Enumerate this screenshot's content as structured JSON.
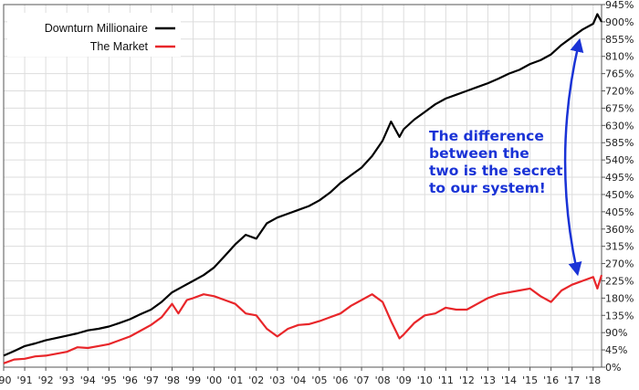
{
  "chart_data": {
    "type": "line",
    "title": "",
    "xlabel": "",
    "ylabel": "",
    "y_unit": "percent",
    "ylim": [
      0,
      945
    ],
    "xlim": [
      1990,
      2018.4
    ],
    "grid": true,
    "legend_position": "top-left",
    "x_ticks": [
      "'90",
      "'91",
      "'92",
      "'93",
      "'94",
      "'95",
      "'96",
      "'97",
      "'98",
      "'99",
      "'00",
      "'01",
      "'02",
      "'03",
      "'04",
      "'05",
      "'06",
      "'07",
      "'08",
      "'09",
      "'10",
      "'11",
      "'12",
      "'13",
      "'14",
      "'15",
      "'16",
      "'17",
      "'18"
    ],
    "y_ticks": [
      "0%",
      "45%",
      "90%",
      "135%",
      "180%",
      "225%",
      "270%",
      "315%",
      "360%",
      "405%",
      "450%",
      "495%",
      "540%",
      "585%",
      "630%",
      "675%",
      "720%",
      "765%",
      "810%",
      "855%",
      "900%",
      "945%"
    ],
    "series": [
      {
        "name": "Downturn Millionaire",
        "color": "#000000",
        "points": [
          [
            1990.0,
            30
          ],
          [
            1990.5,
            42
          ],
          [
            1991.0,
            55
          ],
          [
            1991.5,
            62
          ],
          [
            1992.0,
            70
          ],
          [
            1992.5,
            76
          ],
          [
            1993.0,
            82
          ],
          [
            1993.5,
            88
          ],
          [
            1994.0,
            96
          ],
          [
            1994.5,
            100
          ],
          [
            1995.0,
            106
          ],
          [
            1995.5,
            115
          ],
          [
            1996.0,
            125
          ],
          [
            1996.5,
            138
          ],
          [
            1997.0,
            150
          ],
          [
            1997.5,
            170
          ],
          [
            1998.0,
            195
          ],
          [
            1998.5,
            210
          ],
          [
            1999.0,
            225
          ],
          [
            1999.5,
            240
          ],
          [
            2000.0,
            260
          ],
          [
            2000.5,
            290
          ],
          [
            2001.0,
            320
          ],
          [
            2001.5,
            345
          ],
          [
            2002.0,
            335
          ],
          [
            2002.5,
            375
          ],
          [
            2003.0,
            390
          ],
          [
            2003.5,
            400
          ],
          [
            2004.0,
            410
          ],
          [
            2004.5,
            420
          ],
          [
            2005.0,
            435
          ],
          [
            2005.5,
            455
          ],
          [
            2006.0,
            480
          ],
          [
            2006.5,
            500
          ],
          [
            2007.0,
            520
          ],
          [
            2007.5,
            550
          ],
          [
            2008.0,
            590
          ],
          [
            2008.4,
            640
          ],
          [
            2008.8,
            600
          ],
          [
            2009.0,
            620
          ],
          [
            2009.5,
            645
          ],
          [
            2010.0,
            665
          ],
          [
            2010.5,
            685
          ],
          [
            2011.0,
            700
          ],
          [
            2011.5,
            710
          ],
          [
            2012.0,
            720
          ],
          [
            2012.5,
            730
          ],
          [
            2013.0,
            740
          ],
          [
            2013.5,
            752
          ],
          [
            2014.0,
            765
          ],
          [
            2014.5,
            775
          ],
          [
            2015.0,
            790
          ],
          [
            2015.5,
            800
          ],
          [
            2016.0,
            815
          ],
          [
            2016.5,
            840
          ],
          [
            2017.0,
            860
          ],
          [
            2017.5,
            880
          ],
          [
            2018.0,
            895
          ],
          [
            2018.2,
            920
          ],
          [
            2018.4,
            900
          ]
        ]
      },
      {
        "name": "The Market",
        "color": "#e8262a",
        "points": [
          [
            1990.0,
            10
          ],
          [
            1990.5,
            20
          ],
          [
            1991.0,
            22
          ],
          [
            1991.5,
            28
          ],
          [
            1992.0,
            30
          ],
          [
            1992.5,
            35
          ],
          [
            1993.0,
            40
          ],
          [
            1993.5,
            52
          ],
          [
            1994.0,
            50
          ],
          [
            1994.5,
            55
          ],
          [
            1995.0,
            60
          ],
          [
            1995.5,
            70
          ],
          [
            1996.0,
            80
          ],
          [
            1996.5,
            95
          ],
          [
            1997.0,
            110
          ],
          [
            1997.5,
            130
          ],
          [
            1998.0,
            165
          ],
          [
            1998.3,
            140
          ],
          [
            1998.7,
            175
          ],
          [
            1999.0,
            180
          ],
          [
            1999.5,
            190
          ],
          [
            2000.0,
            185
          ],
          [
            2000.5,
            175
          ],
          [
            2001.0,
            165
          ],
          [
            2001.5,
            140
          ],
          [
            2002.0,
            135
          ],
          [
            2002.5,
            100
          ],
          [
            2003.0,
            80
          ],
          [
            2003.5,
            100
          ],
          [
            2004.0,
            110
          ],
          [
            2004.5,
            112
          ],
          [
            2005.0,
            120
          ],
          [
            2005.5,
            130
          ],
          [
            2006.0,
            140
          ],
          [
            2006.5,
            160
          ],
          [
            2007.0,
            175
          ],
          [
            2007.5,
            190
          ],
          [
            2008.0,
            170
          ],
          [
            2008.4,
            120
          ],
          [
            2008.8,
            75
          ],
          [
            2009.0,
            85
          ],
          [
            2009.5,
            115
          ],
          [
            2010.0,
            135
          ],
          [
            2010.5,
            140
          ],
          [
            2011.0,
            155
          ],
          [
            2011.5,
            150
          ],
          [
            2012.0,
            150
          ],
          [
            2012.5,
            165
          ],
          [
            2013.0,
            180
          ],
          [
            2013.5,
            190
          ],
          [
            2014.0,
            195
          ],
          [
            2014.5,
            200
          ],
          [
            2015.0,
            205
          ],
          [
            2015.5,
            185
          ],
          [
            2016.0,
            170
          ],
          [
            2016.5,
            200
          ],
          [
            2017.0,
            215
          ],
          [
            2017.5,
            225
          ],
          [
            2018.0,
            235
          ],
          [
            2018.2,
            205
          ],
          [
            2018.4,
            240
          ]
        ]
      }
    ],
    "annotation": {
      "lines": [
        "The difference",
        "between the",
        "two is the secret",
        "to our system!"
      ],
      "arrow_color": "#1a33d6",
      "arrow_from_value": 840,
      "arrow_to_value": 255,
      "arrow_x": 2017.3
    }
  }
}
